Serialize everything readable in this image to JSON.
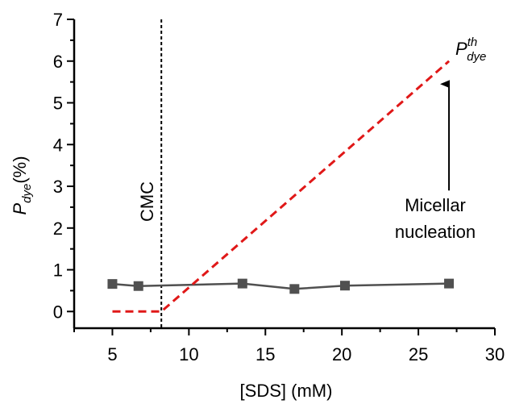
{
  "chart_data": {
    "type": "line",
    "xlabel": "[SDS] (mM)",
    "ylabel": {
      "base": "P",
      "sub": "dye",
      "unit": "(%)"
    },
    "xlim": [
      2.5,
      30
    ],
    "ylim": [
      -0.4,
      7
    ],
    "x_ticks": [
      5,
      10,
      15,
      20,
      25,
      30
    ],
    "y_ticks": [
      0,
      1,
      2,
      3,
      4,
      5,
      6,
      7
    ],
    "grid": false,
    "legend": "none",
    "series": [
      {
        "style": "solid-line-square-markers",
        "color": "#505050",
        "x": [
          5.0,
          6.7,
          13.5,
          16.9,
          20.2,
          27.0
        ],
        "y": [
          0.66,
          0.61,
          0.67,
          0.54,
          0.62,
          0.67
        ]
      },
      {
        "style": "dashed-line",
        "color": "#e01818",
        "x": [
          5.0,
          8.2,
          27.0
        ],
        "y": [
          0.0,
          0.0,
          6.0
        ]
      }
    ],
    "annotations": {
      "cmc": {
        "label": "CMC",
        "x": 8.2
      },
      "pth": {
        "base": "P",
        "sup": "th",
        "sub": "dye"
      },
      "arrow": {
        "line1": "Micellar",
        "line2": "nucleation",
        "x": 27.0,
        "y_from": 2.9,
        "y_to": 5.45
      }
    }
  }
}
